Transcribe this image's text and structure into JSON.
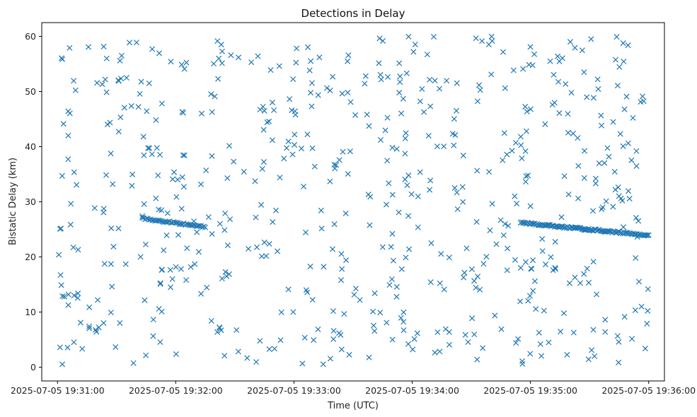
{
  "chart_data": {
    "type": "scatter",
    "title": "Detections in Delay",
    "xlabel": "Time (UTC)",
    "ylabel": "Bistatic Delay (km)",
    "marker": "x",
    "color": "#1f77b4",
    "grid": false,
    "x_tick_labels": [
      "2025-07-05 19:31:00",
      "2025-07-05 19:32:00",
      "2025-07-05 19:33:00",
      "2025-07-05 19:34:00",
      "2025-07-05 19:35:00",
      "2025-07-05 19:36:00"
    ],
    "y_ticks": [
      0,
      10,
      20,
      30,
      40,
      50,
      60
    ],
    "xlim": [
      "2025-07-05 19:30:52",
      "2025-07-05 19:36:08"
    ],
    "ylim": [
      -2.5,
      62.5
    ],
    "tracks": [
      {
        "start_time": "2025-07-05 19:31:43",
        "end_time": "2025-07-05 19:32:15",
        "start_delay": 27.0,
        "end_delay": 25.4,
        "count": 45
      },
      {
        "start_time": "2025-07-05 19:34:55",
        "end_time": "2025-07-05 19:36:00",
        "start_delay": 26.2,
        "end_delay": 23.9,
        "count": 110
      }
    ],
    "clutter": {
      "start_time": "2025-07-05 19:31:00",
      "end_time": "2025-07-05 19:36:00",
      "min_delay": 0.5,
      "max_delay": 60,
      "count": 620
    }
  }
}
